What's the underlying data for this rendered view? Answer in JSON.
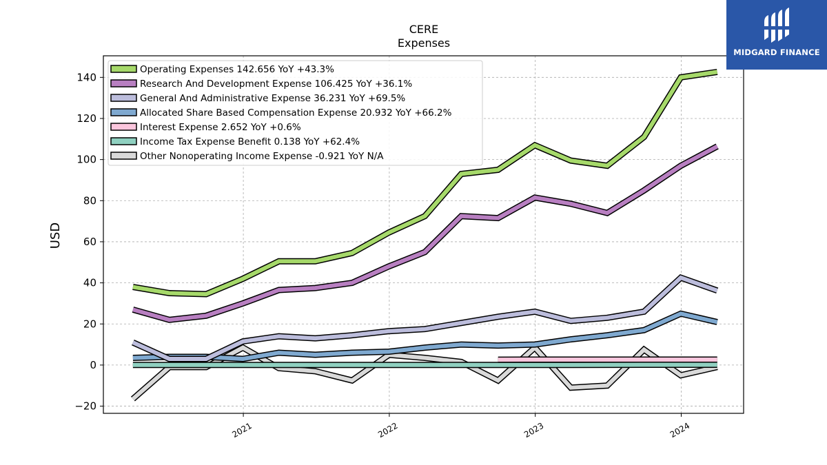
{
  "chart_data": {
    "type": "line",
    "title": "CERE",
    "subtitle": "Expenses",
    "ylabel": "USD",
    "xlabel": "",
    "x_ticks": [
      "2021",
      "2022",
      "2023",
      "2024"
    ],
    "y_ticks": [
      -20,
      0,
      20,
      40,
      60,
      80,
      100,
      120,
      140
    ],
    "ylim": [
      -23.5,
      150.5
    ],
    "xlim": [
      "2020-01-17",
      "2024-06-05"
    ],
    "grid": true,
    "legend_position": "top-left",
    "series": [
      {
        "name": "Operating Expenses",
        "legend_label": "Operating Expenses  142.656 YoY +43.3%",
        "color": "#a6d96a",
        "x": [
          "2020-03-31",
          "2020-06-30",
          "2020-09-30",
          "2020-12-31",
          "2021-03-31",
          "2021-06-30",
          "2021-09-30",
          "2021-12-31",
          "2022-03-31",
          "2022-06-30",
          "2022-09-30",
          "2022-12-31",
          "2023-03-31",
          "2023-06-30",
          "2023-09-30",
          "2023-12-31",
          "2024-03-31"
        ],
        "values": [
          38,
          35,
          34.5,
          42,
          50.5,
          50.5,
          54.5,
          64.5,
          72.5,
          93,
          95,
          107,
          99.5,
          97,
          111,
          140,
          142.656
        ]
      },
      {
        "name": "Research And Development Expense",
        "legend_label": "Research And Development Expense  106.425 YoY +36.1%",
        "color": "#b87fc1",
        "x": [
          "2020-03-31",
          "2020-06-30",
          "2020-09-30",
          "2020-12-31",
          "2021-03-31",
          "2021-06-30",
          "2021-09-30",
          "2021-12-31",
          "2022-03-31",
          "2022-06-30",
          "2022-09-30",
          "2022-12-31",
          "2023-03-31",
          "2023-06-30",
          "2023-09-30",
          "2023-12-31",
          "2024-03-31"
        ],
        "values": [
          27,
          22,
          24,
          30,
          36.5,
          37.5,
          40,
          48,
          55,
          72.5,
          71.5,
          81.5,
          78.5,
          74,
          85,
          97,
          106.425
        ]
      },
      {
        "name": "General And Administrative Expense",
        "legend_label": "General And Administrative Expense  36.231 YoY +69.5%",
        "color": "#bcbddc",
        "x": [
          "2020-03-31",
          "2020-06-30",
          "2020-09-30",
          "2020-12-31",
          "2021-03-31",
          "2021-06-30",
          "2021-09-30",
          "2021-12-31",
          "2022-03-31",
          "2022-06-30",
          "2022-09-30",
          "2022-12-31",
          "2023-03-31",
          "2023-06-30",
          "2023-09-30",
          "2023-12-31",
          "2024-03-31"
        ],
        "values": [
          11,
          3,
          3,
          11.5,
          14,
          13,
          14.5,
          16.5,
          17.5,
          20.5,
          23.5,
          26,
          21.5,
          23,
          26,
          42.5,
          36.231
        ]
      },
      {
        "name": "Allocated Share Based Compensation Expense",
        "legend_label": "Allocated Share Based Compensation Expense  20.932 YoY +66.2%",
        "color": "#7fa9d0",
        "x": [
          "2020-03-31",
          "2020-06-30",
          "2020-09-30",
          "2020-12-31",
          "2021-03-31",
          "2021-06-30",
          "2021-09-30",
          "2021-12-31",
          "2022-03-31",
          "2022-06-30",
          "2022-09-30",
          "2022-12-31",
          "2023-03-31",
          "2023-06-30",
          "2023-09-30",
          "2023-12-31",
          "2024-03-31"
        ],
        "values": [
          3.5,
          4,
          4,
          3,
          6,
          5,
          6,
          6.5,
          8.5,
          10,
          9.5,
          10,
          12.5,
          14.5,
          17,
          25,
          20.932
        ]
      },
      {
        "name": "Interest Expense",
        "legend_label": "Interest Expense  2.652 YoY +0.6%",
        "color": "#fbc6dd",
        "x": [
          "2022-09-30",
          "2022-12-31",
          "2023-03-31",
          "2023-06-30",
          "2023-09-30",
          "2023-12-31",
          "2024-03-31"
        ],
        "values": [
          2.6,
          2.65,
          2.65,
          2.65,
          2.65,
          2.65,
          2.652
        ]
      },
      {
        "name": "Income Tax Expense Benefit",
        "legend_label": "Income Tax Expense Benefit  0.138 YoY +62.4%",
        "color": "#8fd0c0",
        "x": [
          "2020-03-31",
          "2020-06-30",
          "2020-09-30",
          "2020-12-31",
          "2021-03-31",
          "2021-06-30",
          "2021-09-30",
          "2021-12-31",
          "2022-03-31",
          "2022-06-30",
          "2022-09-30",
          "2022-12-31",
          "2023-03-31",
          "2023-06-30",
          "2023-09-30",
          "2023-12-31",
          "2024-03-31"
        ],
        "values": [
          0.05,
          0.05,
          0.05,
          0.05,
          0.06,
          0.06,
          0.07,
          0.08,
          0.08,
          0.08,
          0.08,
          0.08,
          0.085,
          0.1,
          0.12,
          0.13,
          0.138
        ]
      },
      {
        "name": "Other Nonoperating Income Expense",
        "legend_label": "Other Nonoperating Income Expense  -0.921 YoY N/A",
        "color": "#d9d9d9",
        "x": [
          "2020-03-31",
          "2020-06-30",
          "2020-09-30",
          "2020-12-31",
          "2021-03-31",
          "2021-06-30",
          "2021-09-30",
          "2021-12-31",
          "2022-03-31",
          "2022-06-30",
          "2022-09-30",
          "2022-12-31",
          "2023-03-31",
          "2023-06-30",
          "2023-09-30",
          "2023-12-31",
          "2024-03-31"
        ],
        "values": [
          -16.5,
          -1,
          -1,
          8.5,
          -1.5,
          -3,
          -7.5,
          5,
          3.5,
          1.5,
          -7.5,
          8.5,
          -11,
          -10,
          7.5,
          -5,
          -0.921
        ]
      }
    ]
  },
  "logo": {
    "text": "MIDGARD FINANCE",
    "icon": "midgard-logo-icon",
    "background": "#2a57a8"
  }
}
